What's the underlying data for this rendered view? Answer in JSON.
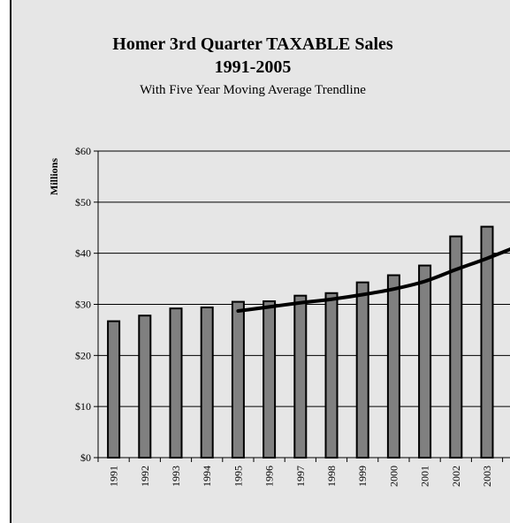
{
  "chart_data": {
    "type": "bar",
    "title": "Homer 3rd Quarter TAXABLE Sales",
    "title_line2": "1991-2005",
    "subtitle": "With Five Year Moving Average Trendline",
    "ylabel": "Millions",
    "xlabel": "",
    "ylim": [
      0,
      60
    ],
    "y_ticks": [
      "$0",
      "$10",
      "$20",
      "$30",
      "$40",
      "$50",
      "$60"
    ],
    "grid": true,
    "categories": [
      "1991",
      "1992",
      "1993",
      "1994",
      "1995",
      "1996",
      "1997",
      "1998",
      "1999",
      "2000",
      "2001",
      "2002",
      "2003"
    ],
    "series": [
      {
        "values": [
          26.7,
          27.8,
          29.2,
          29.4,
          30.5,
          30.6,
          31.7,
          32.2,
          34.3,
          35.7,
          37.6,
          43.3,
          45.2
        ]
      }
    ],
    "trendline": {
      "type": "moving-average",
      "points": [
        {
          "x": "1995",
          "y": 28.7
        },
        {
          "x": "1996",
          "y": 29.5
        },
        {
          "x": "1997",
          "y": 30.3
        },
        {
          "x": "1998",
          "y": 31.0
        },
        {
          "x": "1999",
          "y": 31.9
        },
        {
          "x": "2000",
          "y": 33.0
        },
        {
          "x": "2001",
          "y": 34.5
        },
        {
          "x": "2002",
          "y": 36.8
        },
        {
          "x": "2003",
          "y": 39.0
        },
        {
          "x": "2004",
          "y": 41.4
        }
      ]
    },
    "colors": {
      "bar": "#808080",
      "trendline": "#000000",
      "background": "#e6e6e6",
      "grid": "#000000"
    }
  }
}
